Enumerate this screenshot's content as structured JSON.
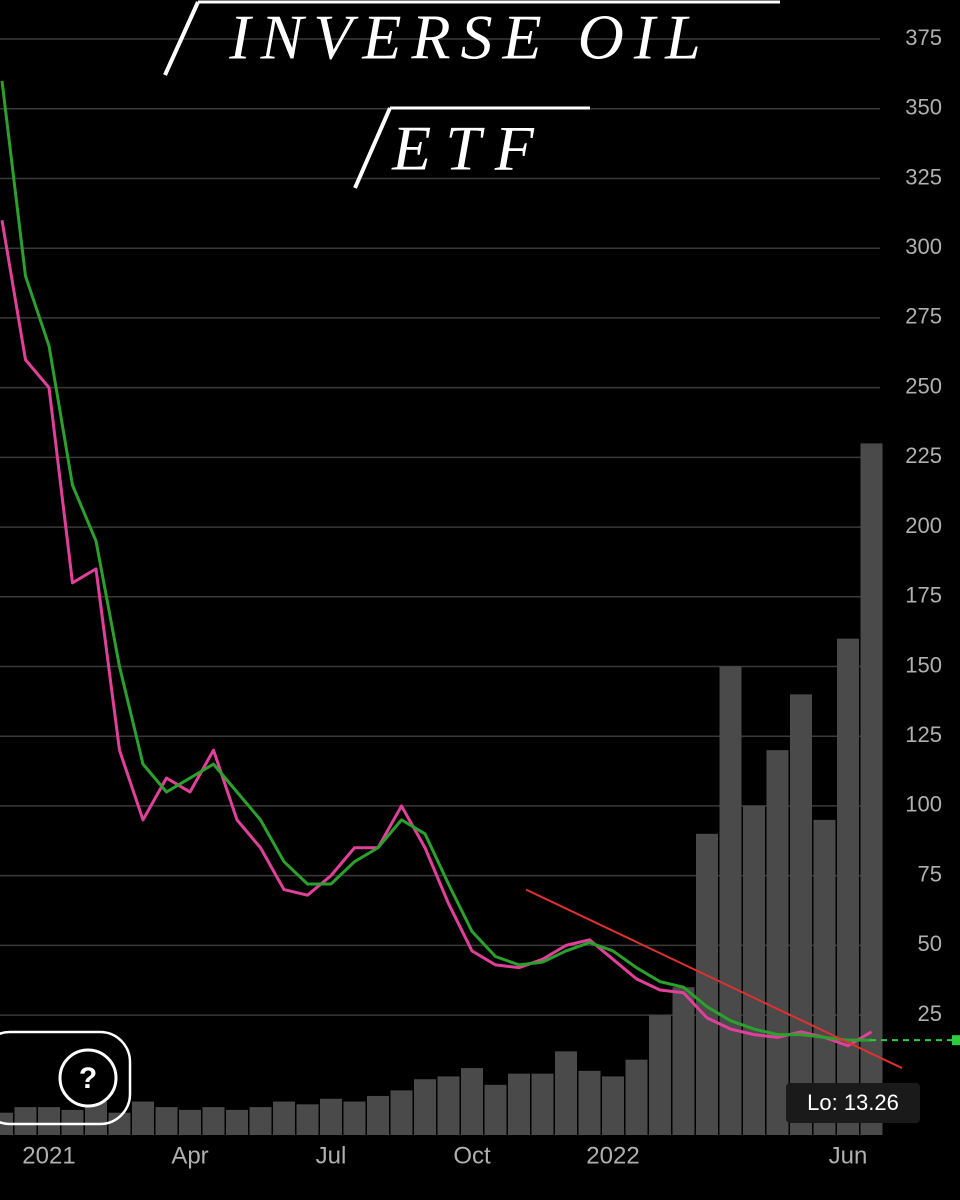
{
  "chart_data": {
    "type": "line",
    "title": "INVERSE OIL",
    "subtitle": "ETF",
    "categories": [
      null,
      null,
      "2021",
      null,
      null,
      null,
      null,
      null,
      "Apr",
      null,
      null,
      null,
      null,
      null,
      "Jul",
      null,
      null,
      null,
      null,
      null,
      "Oct",
      null,
      null,
      null,
      null,
      null,
      "2022",
      null,
      null,
      null,
      null,
      null,
      null,
      null,
      null,
      null,
      "Jun",
      null
    ],
    "series": [
      {
        "color": "#e0409a",
        "values": [
          310,
          260,
          250,
          180,
          185,
          120,
          95,
          110,
          105,
          120,
          95,
          85,
          70,
          68,
          75,
          85,
          85,
          100,
          85,
          65,
          48,
          43,
          42,
          45,
          50,
          52,
          45,
          38,
          34,
          33,
          24,
          20,
          18,
          17,
          19,
          17,
          14,
          19
        ]
      },
      {
        "color": "#2ca02c",
        "values": [
          360,
          290,
          265,
          215,
          195,
          150,
          115,
          105,
          110,
          115,
          105,
          95,
          80,
          72,
          72,
          80,
          85,
          95,
          90,
          72,
          55,
          46,
          43,
          44,
          48,
          51,
          48,
          42,
          37,
          35,
          28,
          23,
          20,
          18,
          18,
          17,
          16,
          16
        ]
      }
    ],
    "volume": {
      "color": "#4a4a4a",
      "values": [
        -10,
        -8,
        -8,
        -9,
        -6,
        -10,
        -6,
        -8,
        -9,
        -8,
        -9,
        -8,
        -6,
        -7,
        -5,
        -6,
        -4,
        -2,
        2,
        3,
        6,
        0,
        4,
        4,
        12,
        5,
        3,
        9,
        25,
        35,
        90,
        150,
        100,
        120,
        140,
        95,
        160,
        230
      ]
    },
    "trendline": {
      "color": "#e03030",
      "x": [
        22.3,
        38.3
      ],
      "y": [
        70,
        6
      ]
    },
    "last_price": {
      "color": "#2ecc40",
      "value": 16
    },
    "low_label": "Lo: 13.26",
    "ylim": [
      -18,
      389
    ],
    "yticks": [
      25,
      50,
      75,
      100,
      125,
      150,
      175,
      200,
      225,
      250,
      275,
      300,
      325,
      350,
      375
    ],
    "grid": true
  }
}
